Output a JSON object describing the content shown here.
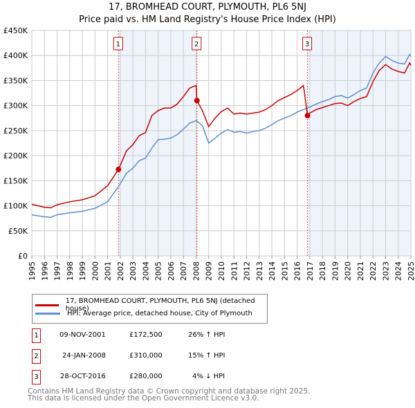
{
  "chart_data": {
    "type": "line",
    "title": "17, BROMHEAD COURT, PLYMOUTH, PL6 5NJ",
    "subtitle": "Price paid vs. HM Land Registry's House Price Index (HPI)",
    "xlim": [
      1995,
      2025
    ],
    "ylim": [
      0,
      450000
    ],
    "yticks": [
      {
        "v": 0,
        "label": "£0"
      },
      {
        "v": 50000,
        "label": "£50K"
      },
      {
        "v": 100000,
        "label": "£100K"
      },
      {
        "v": 150000,
        "label": "£150K"
      },
      {
        "v": 200000,
        "label": "£200K"
      },
      {
        "v": 250000,
        "label": "£250K"
      },
      {
        "v": 300000,
        "label": "£300K"
      },
      {
        "v": 350000,
        "label": "£350K"
      },
      {
        "v": 400000,
        "label": "£400K"
      },
      {
        "v": 450000,
        "label": "£450K"
      }
    ],
    "xticks": [
      "1995",
      "1996",
      "1997",
      "1998",
      "1999",
      "2000",
      "2001",
      "2002",
      "2003",
      "2004",
      "2005",
      "2006",
      "2007",
      "2008",
      "2009",
      "2010",
      "2011",
      "2012",
      "2013",
      "2014",
      "2015",
      "2016",
      "2017",
      "2018",
      "2019",
      "2020",
      "2021",
      "2022",
      "2023",
      "2024",
      "2025"
    ],
    "grid": true,
    "colors": {
      "property": "#cc0000",
      "hpi": "#5b8fd4",
      "shade": "#eef3fc"
    },
    "shaded": [
      [
        2001.86,
        2008.07
      ],
      [
        2016.82,
        2025
      ]
    ],
    "series": [
      {
        "name": "17, BROMHEAD COURT, PLYMOUTH, PL6 5NJ (detached house)",
        "x": [
          1995,
          1996,
          1996.5,
          1997,
          1998,
          1999,
          2000,
          2001,
          2001.86,
          2002.5,
          2003,
          2003.5,
          2004,
          2004.5,
          2005,
          2005.5,
          2006,
          2006.5,
          2007,
          2007.5,
          2008,
          2008.07,
          2008.5,
          2009,
          2009.5,
          2010,
          2010.5,
          2011,
          2011.5,
          2012,
          2012.5,
          2013,
          2013.5,
          2014,
          2014.5,
          2015,
          2015.5,
          2016,
          2016.5,
          2016.82,
          2017,
          2017.5,
          2018,
          2018.5,
          2019,
          2019.5,
          2020,
          2020.5,
          2021,
          2021.5,
          2022,
          2022.5,
          2023,
          2023.5,
          2024,
          2024.5,
          2024.9,
          2025
        ],
        "y": [
          103,
          97,
          96,
          102,
          108,
          112,
          120,
          140,
          172.5,
          210,
          222,
          240,
          246,
          280,
          290,
          295,
          295,
          303,
          318,
          335,
          340,
          310,
          290,
          258,
          275,
          288,
          295,
          283,
          285,
          283,
          285,
          287,
          292,
          300,
          310,
          316,
          322,
          330,
          340,
          280,
          285,
          292,
          296,
          300,
          304,
          305,
          300,
          308,
          314,
          318,
          348,
          370,
          382,
          373,
          368,
          365,
          385,
          380
        ]
      },
      {
        "name": "HPI: Average price, detached house, City of Plymouth",
        "x": [
          1995,
          1996,
          1996.5,
          1997,
          1998,
          1999,
          2000,
          2001,
          2001.8,
          2002.5,
          2003,
          2003.5,
          2004,
          2004.5,
          2005,
          2005.5,
          2006,
          2006.5,
          2007,
          2007.5,
          2008,
          2008.5,
          2009,
          2009.5,
          2010,
          2010.5,
          2011,
          2011.5,
          2012,
          2012.5,
          2013,
          2013.5,
          2014,
          2014.5,
          2015,
          2015.5,
          2016,
          2016.5,
          2017,
          2017.5,
          2018,
          2018.5,
          2019,
          2019.5,
          2020,
          2020.5,
          2021,
          2021.5,
          2022,
          2022.5,
          2023,
          2023.5,
          2024,
          2024.5,
          2024.9,
          2025
        ],
        "y": [
          82,
          78,
          77,
          82,
          86,
          89,
          95,
          108,
          136,
          165,
          175,
          190,
          195,
          215,
          232,
          233,
          235,
          242,
          253,
          265,
          270,
          260,
          225,
          235,
          245,
          252,
          247,
          248,
          245,
          248,
          250,
          255,
          262,
          270,
          275,
          280,
          287,
          292,
          297,
          303,
          308,
          312,
          318,
          320,
          315,
          322,
          330,
          335,
          365,
          385,
          398,
          390,
          385,
          383,
          402,
          398
        ]
      }
    ],
    "sales": [
      {
        "n": "1",
        "x": 2001.86,
        "y": 172.5
      },
      {
        "n": "2",
        "x": 2008.07,
        "y": 310
      },
      {
        "n": "3",
        "x": 2016.82,
        "y": 280
      }
    ]
  },
  "legend": {
    "property": "17, BROMHEAD COURT, PLYMOUTH, PL6 5NJ (detached house)",
    "hpi": "HPI: Average price, detached house, City of Plymouth"
  },
  "transactions": [
    {
      "n": "1",
      "date": "09-NOV-2001",
      "price": "£172,500",
      "hpi": "26% ↑ HPI"
    },
    {
      "n": "2",
      "date": "24-JAN-2008",
      "price": "£310,000",
      "hpi": "15% ↑ HPI"
    },
    {
      "n": "3",
      "date": "28-OCT-2016",
      "price": "£280,000",
      "hpi": "4% ↓ HPI"
    }
  ],
  "footer": {
    "line1": "Contains HM Land Registry data © Crown copyright and database right 2025.",
    "line2": "This data is licensed under the Open Government Licence v3.0."
  }
}
